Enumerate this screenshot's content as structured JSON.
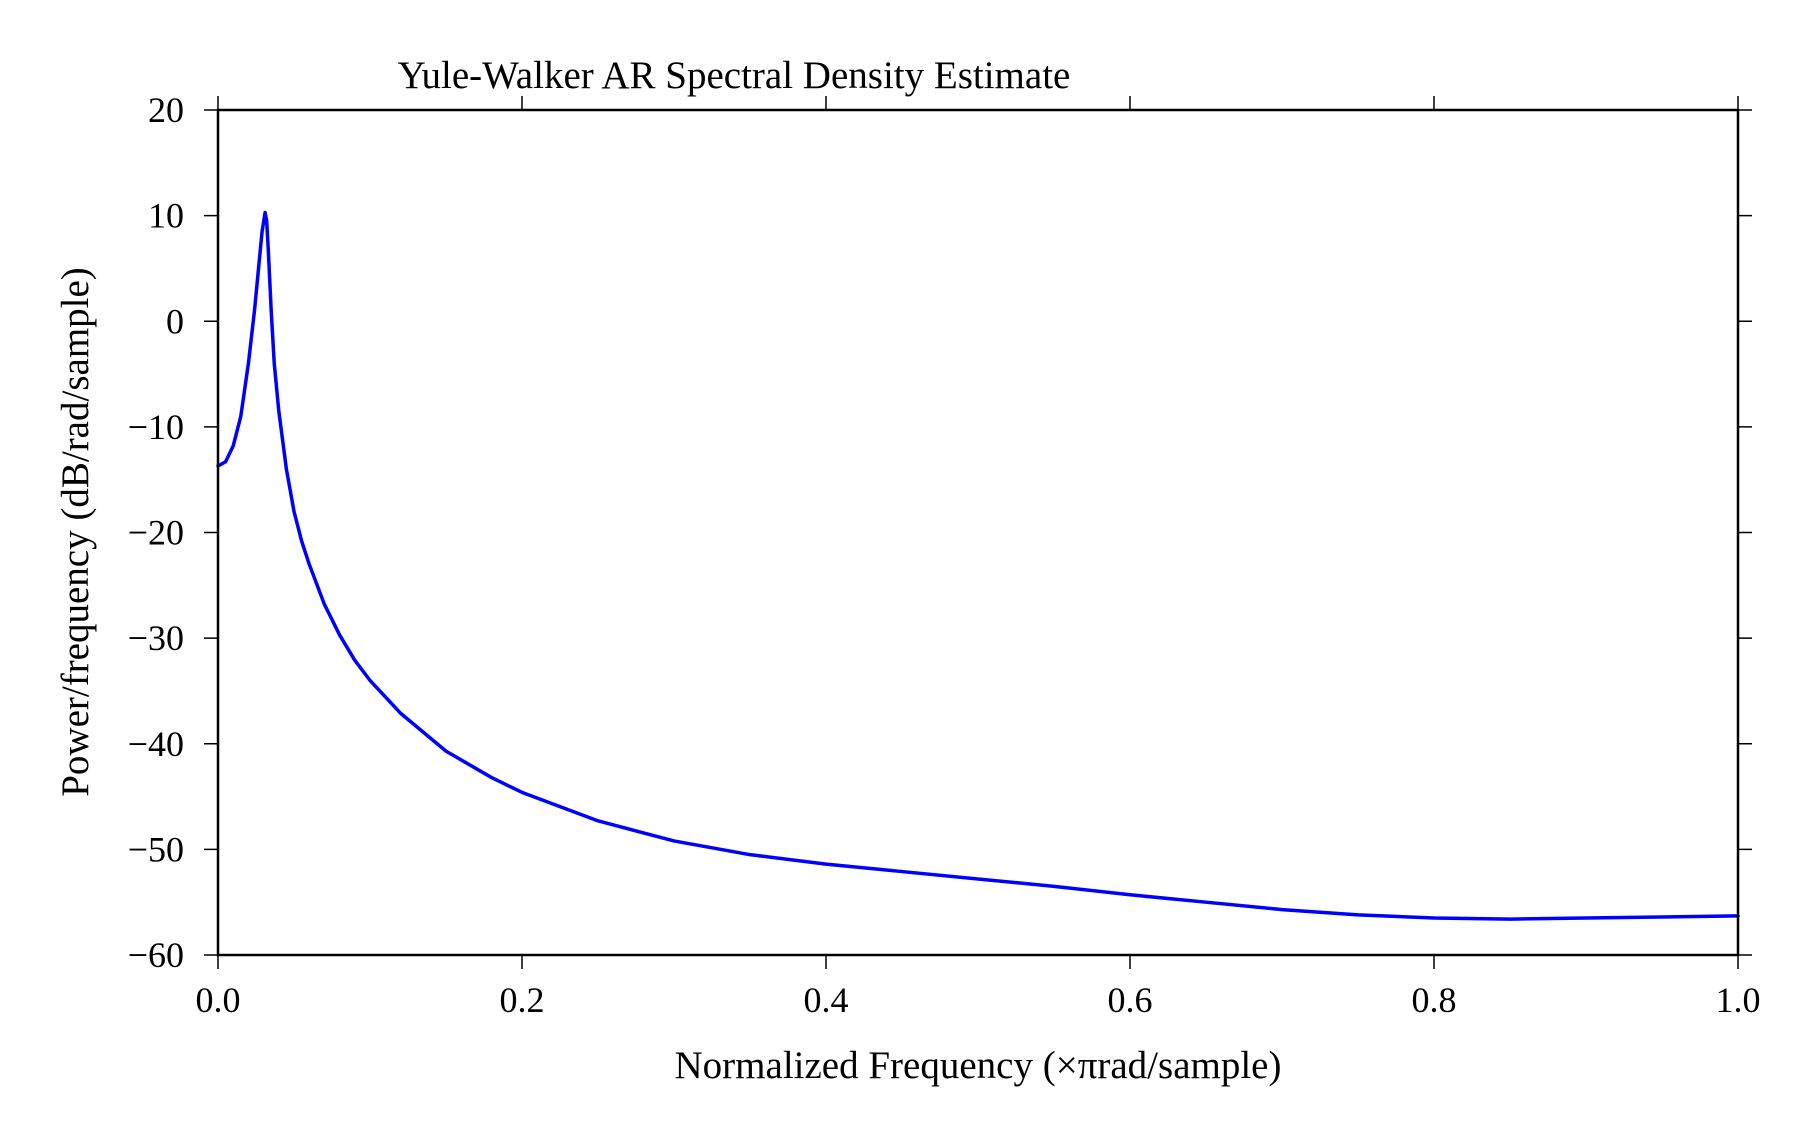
{
  "chart_data": {
    "type": "line",
    "title": "Yule-Walker AR Spectral Density Estimate",
    "xlabel": "Normalized Frequency (×πrad/sample)",
    "ylabel": "Power/frequency (dB/rad/sample)",
    "xlim": [
      0.0,
      1.0
    ],
    "ylim": [
      -60,
      20
    ],
    "xticks": [
      0.0,
      0.2,
      0.4,
      0.6,
      0.8,
      1.0
    ],
    "xtick_labels": [
      "0.0",
      "0.2",
      "0.4",
      "0.6",
      "0.8",
      "1.0"
    ],
    "yticks": [
      20,
      10,
      0,
      -10,
      -20,
      -30,
      -40,
      -50,
      -60
    ],
    "ytick_labels": [
      "20",
      "10",
      "0",
      "−10",
      "−20",
      "−30",
      "−40",
      "−50",
      "−60"
    ],
    "grid": false,
    "legend": "none",
    "series": [
      {
        "color": "#0000ff",
        "x": [
          0.0,
          0.005,
          0.01,
          0.015,
          0.02,
          0.024,
          0.027,
          0.029,
          0.031,
          0.032,
          0.033,
          0.035,
          0.037,
          0.04,
          0.045,
          0.05,
          0.055,
          0.06,
          0.07,
          0.08,
          0.09,
          0.1,
          0.12,
          0.15,
          0.18,
          0.2,
          0.25,
          0.3,
          0.35,
          0.4,
          0.45,
          0.5,
          0.55,
          0.6,
          0.65,
          0.7,
          0.75,
          0.8,
          0.85,
          0.9,
          0.95,
          1.0
        ],
        "y": [
          -13.7,
          -13.3,
          -11.8,
          -9.0,
          -4.0,
          1.0,
          5.5,
          8.5,
          10.3,
          9.5,
          7.0,
          1.0,
          -4.0,
          -8.5,
          -14.0,
          -18.0,
          -20.8,
          -23.0,
          -26.8,
          -29.7,
          -32.1,
          -34.0,
          -37.1,
          -40.7,
          -43.2,
          -44.6,
          -47.3,
          -49.2,
          -50.5,
          -51.4,
          -52.1,
          -52.8,
          -53.5,
          -54.3,
          -55.0,
          -55.7,
          -56.2,
          -56.5,
          -56.6,
          -56.5,
          -56.4,
          -56.3
        ]
      }
    ]
  }
}
